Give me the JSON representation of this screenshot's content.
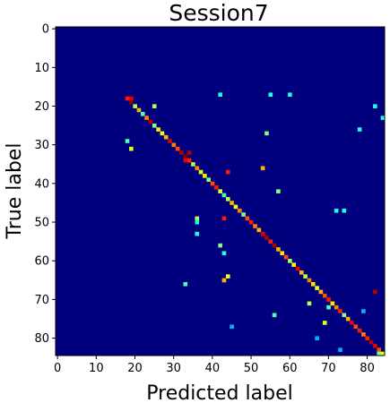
{
  "chart_data": {
    "type": "heatmap",
    "title": "Session7",
    "xlabel": "Predicted label",
    "ylabel": "True label",
    "n_classes": 85,
    "xlim": [
      0,
      84
    ],
    "ylim": [
      84,
      0
    ],
    "x_ticks": [
      "0",
      "10",
      "20",
      "30",
      "40",
      "50",
      "60",
      "70",
      "80"
    ],
    "y_ticks": [
      "0",
      "10",
      "20",
      "30",
      "40",
      "50",
      "60",
      "70",
      "80"
    ],
    "colormap": "jet",
    "value_range": [
      0,
      1
    ],
    "background_value": 0,
    "diagonal_start_class": 18,
    "diagonal_values": [
      0.85,
      1.0,
      0.55,
      0.7,
      0.45,
      0.75,
      0.95,
      0.5,
      0.65,
      0.6,
      0.7,
      0.9,
      0.75,
      0.8,
      0.95,
      1.0,
      0.85,
      0.55,
      0.75,
      0.6,
      0.65,
      0.5,
      0.8,
      0.85,
      0.6,
      0.45,
      0.55,
      0.7,
      0.6,
      0.75,
      0.5,
      0.8,
      0.85,
      0.75,
      0.7,
      0.9,
      0.95,
      0.85,
      0.95,
      0.7,
      0.65,
      0.8,
      0.55,
      0.6,
      0.9,
      0.7,
      0.55,
      0.75,
      0.65,
      0.6,
      0.7,
      0.8,
      0.85,
      0.65,
      0.75,
      0.85,
      0.5,
      0.7,
      0.9,
      0.8,
      0.85,
      0.75,
      0.85,
      0.95,
      0.9,
      0.8,
      0.6
    ],
    "off_diagonal_cells": [
      {
        "true": 17,
        "pred": 42,
        "value": 0.4
      },
      {
        "true": 17,
        "pred": 55,
        "value": 0.4
      },
      {
        "true": 17,
        "pred": 60,
        "value": 0.4
      },
      {
        "true": 18,
        "pred": 19,
        "value": 0.9
      },
      {
        "true": 20,
        "pred": 25,
        "value": 0.55
      },
      {
        "true": 20,
        "pred": 82,
        "value": 0.4
      },
      {
        "true": 23,
        "pred": 84,
        "value": 0.4
      },
      {
        "true": 26,
        "pred": 78,
        "value": 0.4
      },
      {
        "true": 27,
        "pred": 54,
        "value": 0.5
      },
      {
        "true": 29,
        "pred": 18,
        "value": 0.45
      },
      {
        "true": 31,
        "pred": 19,
        "value": 0.6
      },
      {
        "true": 32,
        "pred": 34,
        "value": 0.95
      },
      {
        "true": 34,
        "pred": 33,
        "value": 0.9
      },
      {
        "true": 36,
        "pred": 53,
        "value": 0.7
      },
      {
        "true": 37,
        "pred": 44,
        "value": 0.85
      },
      {
        "true": 42,
        "pred": 57,
        "value": 0.5
      },
      {
        "true": 47,
        "pred": 72,
        "value": 0.4
      },
      {
        "true": 47,
        "pred": 74,
        "value": 0.4
      },
      {
        "true": 49,
        "pred": 36,
        "value": 0.55
      },
      {
        "true": 49,
        "pred": 43,
        "value": 0.85
      },
      {
        "true": 50,
        "pred": 36,
        "value": 0.4
      },
      {
        "true": 53,
        "pred": 36,
        "value": 0.4
      },
      {
        "true": 56,
        "pred": 42,
        "value": 0.5
      },
      {
        "true": 58,
        "pred": 43,
        "value": 0.4
      },
      {
        "true": 64,
        "pred": 44,
        "value": 0.6
      },
      {
        "true": 65,
        "pred": 43,
        "value": 0.7
      },
      {
        "true": 66,
        "pred": 33,
        "value": 0.45
      },
      {
        "true": 68,
        "pred": 82,
        "value": 0.95
      },
      {
        "true": 71,
        "pred": 65,
        "value": 0.55
      },
      {
        "true": 72,
        "pred": 70,
        "value": 0.45
      },
      {
        "true": 73,
        "pred": 79,
        "value": 0.3
      },
      {
        "true": 74,
        "pred": 56,
        "value": 0.45
      },
      {
        "true": 76,
        "pred": 69,
        "value": 0.6
      },
      {
        "true": 77,
        "pred": 45,
        "value": 0.3
      },
      {
        "true": 80,
        "pred": 67,
        "value": 0.3
      },
      {
        "true": 83,
        "pred": 73,
        "value": 0.3
      },
      {
        "true": 84,
        "pred": 83,
        "value": 0.5
      }
    ]
  }
}
